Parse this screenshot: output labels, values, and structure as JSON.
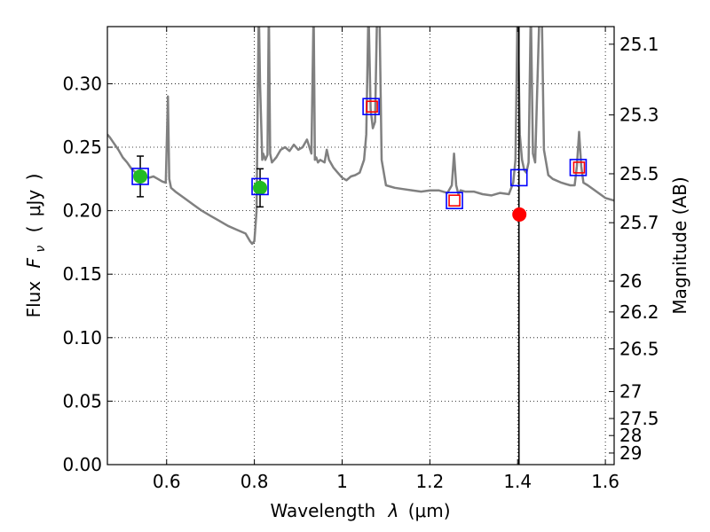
{
  "chart_data": {
    "type": "scatter",
    "title": "",
    "xlabel": "Wavelength",
    "xlabel_symbol": "λ",
    "xlabel_unit": "(μm)",
    "ylabel": "Flux",
    "ylabel_symbol": "F",
    "ylabel_subscript": "ν",
    "ylabel_unit": "μJy",
    "y2label": "Magnitude (AB)",
    "xlim": [
      0.465,
      1.62
    ],
    "ylim": [
      0.0,
      0.345
    ],
    "grid": true,
    "x_ticks": [
      {
        "value": 0.6,
        "label": "0.6"
      },
      {
        "value": 0.8,
        "label": "0.8"
      },
      {
        "value": 1.0,
        "label": "1"
      },
      {
        "value": 1.2,
        "label": "1.2"
      },
      {
        "value": 1.4,
        "label": "1.4"
      },
      {
        "value": 1.6,
        "label": "1.6"
      }
    ],
    "y_ticks": [
      {
        "value": 0.0,
        "label": "0.00"
      },
      {
        "value": 0.05,
        "label": "0.05"
      },
      {
        "value": 0.1,
        "label": "0.10"
      },
      {
        "value": 0.15,
        "label": "0.15"
      },
      {
        "value": 0.2,
        "label": "0.20"
      },
      {
        "value": 0.25,
        "label": "0.25"
      },
      {
        "value": 0.3,
        "label": "0.30"
      }
    ],
    "y2_ticks": [
      {
        "value": 25.1,
        "label": "25.1"
      },
      {
        "value": 25.3,
        "label": "25.3"
      },
      {
        "value": 25.5,
        "label": "25.5"
      },
      {
        "value": 25.7,
        "label": "25.7"
      },
      {
        "value": 26.0,
        "label": "26"
      },
      {
        "value": 26.2,
        "label": "26.2"
      },
      {
        "value": 26.5,
        "label": "26.5"
      },
      {
        "value": 27.0,
        "label": "27"
      },
      {
        "value": 27.5,
        "label": "27.5"
      },
      {
        "value": 28.0,
        "label": "28"
      },
      {
        "value": 29.0,
        "label": "29"
      }
    ],
    "model_spectrum": {
      "color": "#808080",
      "x": [
        0.465,
        0.47,
        0.48,
        0.49,
        0.5,
        0.51,
        0.52,
        0.53,
        0.54,
        0.55,
        0.56,
        0.57,
        0.58,
        0.59,
        0.598,
        0.603,
        0.606,
        0.61,
        0.62,
        0.64,
        0.66,
        0.68,
        0.7,
        0.72,
        0.74,
        0.76,
        0.78,
        0.79,
        0.795,
        0.8,
        0.805,
        0.808,
        0.81,
        0.813,
        0.818,
        0.82,
        0.825,
        0.83,
        0.833,
        0.836,
        0.84,
        0.85,
        0.86,
        0.87,
        0.88,
        0.89,
        0.9,
        0.91,
        0.92,
        0.93,
        0.935,
        0.938,
        0.941,
        0.945,
        0.95,
        0.96,
        0.965,
        0.97,
        0.98,
        0.99,
        1.0,
        1.01,
        1.02,
        1.03,
        1.04,
        1.05,
        1.055,
        1.06,
        1.065,
        1.07,
        1.075,
        1.08,
        1.085,
        1.09,
        1.1,
        1.12,
        1.14,
        1.16,
        1.18,
        1.2,
        1.22,
        1.24,
        1.25,
        1.255,
        1.26,
        1.265,
        1.27,
        1.28,
        1.3,
        1.32,
        1.34,
        1.36,
        1.38,
        1.39,
        1.395,
        1.4,
        1.405,
        1.41,
        1.415,
        1.42,
        1.425,
        1.43,
        1.435,
        1.44,
        1.445,
        1.45,
        1.455,
        1.46,
        1.47,
        1.48,
        1.5,
        1.52,
        1.53,
        1.535,
        1.54,
        1.545,
        1.55,
        1.56,
        1.58,
        1.6,
        1.62
      ],
      "y": [
        0.26,
        0.258,
        0.253,
        0.248,
        0.242,
        0.238,
        0.233,
        0.23,
        0.228,
        0.227,
        0.226,
        0.227,
        0.225,
        0.223,
        0.222,
        0.29,
        0.225,
        0.218,
        0.215,
        0.21,
        0.205,
        0.2,
        0.196,
        0.192,
        0.188,
        0.185,
        0.182,
        0.176,
        0.174,
        0.176,
        0.2,
        0.3,
        0.36,
        0.3,
        0.24,
        0.245,
        0.24,
        0.244,
        0.36,
        0.245,
        0.238,
        0.242,
        0.248,
        0.25,
        0.247,
        0.252,
        0.248,
        0.25,
        0.256,
        0.245,
        0.36,
        0.24,
        0.242,
        0.238,
        0.24,
        0.238,
        0.248,
        0.24,
        0.234,
        0.23,
        0.226,
        0.224,
        0.227,
        0.228,
        0.23,
        0.24,
        0.26,
        0.36,
        0.28,
        0.265,
        0.27,
        0.36,
        0.36,
        0.24,
        0.22,
        0.218,
        0.217,
        0.216,
        0.215,
        0.216,
        0.216,
        0.214,
        0.22,
        0.245,
        0.22,
        0.213,
        0.216,
        0.215,
        0.215,
        0.213,
        0.212,
        0.214,
        0.213,
        0.222,
        0.24,
        0.36,
        0.26,
        0.24,
        0.232,
        0.23,
        0.238,
        0.36,
        0.245,
        0.238,
        0.3,
        0.36,
        0.36,
        0.248,
        0.228,
        0.225,
        0.222,
        0.22,
        0.22,
        0.235,
        0.262,
        0.235,
        0.222,
        0.22,
        0.215,
        0.21,
        0.208
      ]
    },
    "vertical_line": {
      "x": 1.403,
      "color": "#000000"
    },
    "series": [
      {
        "marker": "circle",
        "color": "#22bb22",
        "points": [
          {
            "x": 0.54,
            "y": 0.227,
            "yerr": 0.016
          },
          {
            "x": 0.813,
            "y": 0.218,
            "yerr": 0.015
          }
        ]
      },
      {
        "marker": "circle",
        "color": "#ff0000",
        "points": [
          {
            "x": 1.404,
            "y": 0.197
          }
        ]
      },
      {
        "marker": "square-open",
        "color": "#0000ff",
        "points": [
          {
            "x": 0.54,
            "y": 0.227
          },
          {
            "x": 0.813,
            "y": 0.219
          },
          {
            "x": 1.066,
            "y": 0.282
          },
          {
            "x": 1.256,
            "y": 0.208
          },
          {
            "x": 1.403,
            "y": 0.226
          },
          {
            "x": 1.538,
            "y": 0.234
          }
        ]
      },
      {
        "marker": "square-open",
        "color": "#ff0000",
        "points": [
          {
            "x": 1.068,
            "y": 0.282
          },
          {
            "x": 1.256,
            "y": 0.208
          },
          {
            "x": 1.54,
            "y": 0.234
          }
        ]
      }
    ]
  }
}
